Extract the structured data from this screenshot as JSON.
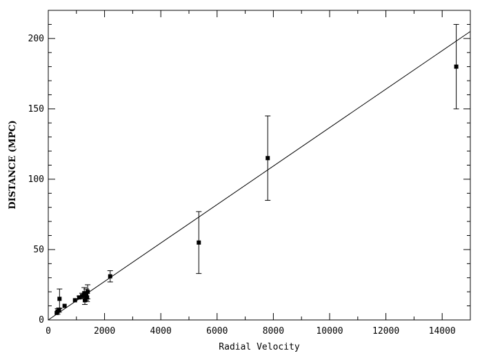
{
  "chart_data": {
    "type": "scatter",
    "title": "",
    "xlabel": "Radial Velocity",
    "ylabel": "DISTANCE (MPC)",
    "xlim": [
      0,
      15000
    ],
    "ylim": [
      0,
      220
    ],
    "xticks": [
      0,
      2000,
      4000,
      6000,
      8000,
      10000,
      12000,
      14000
    ],
    "yticks": [
      0,
      50,
      100,
      150,
      200
    ],
    "xtick_labels": [
      "0",
      "2000",
      "4000",
      "6000",
      "8000",
      "10000",
      "12000",
      "14000"
    ],
    "ytick_labels": [
      "0",
      "50",
      "100",
      "150",
      "200"
    ],
    "grid": false,
    "legend": "none",
    "fit_line": {
      "x": [
        0,
        15000
      ],
      "y": [
        0,
        205
      ]
    },
    "points": [
      {
        "x": 300,
        "y": 5,
        "err": 0
      },
      {
        "x": 330,
        "y": 6,
        "err": 2
      },
      {
        "x": 380,
        "y": 7,
        "err": 1.5
      },
      {
        "x": 400,
        "y": 15,
        "err": 7
      },
      {
        "x": 580,
        "y": 10,
        "err": 0
      },
      {
        "x": 950,
        "y": 14,
        "err": 0
      },
      {
        "x": 1100,
        "y": 16,
        "err": 1
      },
      {
        "x": 1200,
        "y": 17,
        "err": 2
      },
      {
        "x": 1280,
        "y": 19,
        "err": 4
      },
      {
        "x": 1300,
        "y": 14,
        "err": 3
      },
      {
        "x": 1350,
        "y": 18,
        "err": 4
      },
      {
        "x": 1380,
        "y": 16,
        "err": 3
      },
      {
        "x": 1400,
        "y": 20,
        "err": 5
      },
      {
        "x": 2200,
        "y": 31,
        "err": 4
      },
      {
        "x": 5350,
        "y": 55,
        "err": 22
      },
      {
        "x": 7800,
        "y": 115,
        "err": 30
      },
      {
        "x": 14500,
        "y": 180,
        "err": 30
      }
    ]
  }
}
